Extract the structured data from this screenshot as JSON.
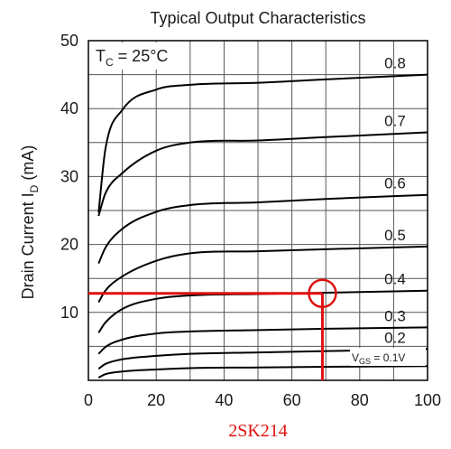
{
  "chart_data": {
    "type": "line",
    "title": "Typical Output Characteristics",
    "ylabel_main": "Drain Current",
    "ylabel_symbol": "I",
    "ylabel_sub": "D",
    "ylabel_unit": "(mA)",
    "xlim": [
      0,
      100
    ],
    "ylim": [
      0,
      50
    ],
    "x_ticks": [
      "0",
      "20",
      "40",
      "60",
      "80",
      "100"
    ],
    "y_ticks": [
      "10",
      "20",
      "30",
      "40",
      "50"
    ],
    "grid": true,
    "temperature_label": {
      "main": "T",
      "sub": "C",
      "rest": " = 25°C"
    },
    "vgs_label": {
      "main": "V",
      "sub": "GS",
      "rest": " = 0.1V"
    },
    "series": [
      {
        "name": "0.1V",
        "label": "0.1V",
        "points": [
          [
            3,
            0.4
          ],
          [
            5,
            0.9
          ],
          [
            10,
            1.3
          ],
          [
            20,
            1.6
          ],
          [
            30,
            1.8
          ],
          [
            50,
            1.9
          ],
          [
            70,
            2.0
          ],
          [
            100,
            2.1
          ]
        ]
      },
      {
        "name": "0.2",
        "label": "0.2",
        "points": [
          [
            3,
            1.7
          ],
          [
            5,
            2.4
          ],
          [
            10,
            3.1
          ],
          [
            20,
            3.6
          ],
          [
            30,
            3.9
          ],
          [
            50,
            4.1
          ],
          [
            70,
            4.3
          ],
          [
            100,
            4.6
          ]
        ]
      },
      {
        "name": "0.3",
        "label": "0.3",
        "points": [
          [
            3,
            3.9
          ],
          [
            5,
            4.9
          ],
          [
            10,
            6.0
          ],
          [
            20,
            6.9
          ],
          [
            30,
            7.2
          ],
          [
            50,
            7.4
          ],
          [
            70,
            7.6
          ],
          [
            100,
            7.8
          ]
        ]
      },
      {
        "name": "0.4",
        "label": "0.4",
        "points": [
          [
            3,
            7.0
          ],
          [
            5,
            8.5
          ],
          [
            10,
            10.5
          ],
          [
            20,
            12.0
          ],
          [
            30,
            12.5
          ],
          [
            50,
            12.7
          ],
          [
            70,
            12.9
          ],
          [
            100,
            13.2
          ]
        ]
      },
      {
        "name": "0.5",
        "label": "0.5",
        "points": [
          [
            3,
            11.5
          ],
          [
            5,
            13.2
          ],
          [
            10,
            15.3
          ],
          [
            20,
            17.6
          ],
          [
            30,
            18.7
          ],
          [
            50,
            19.0
          ],
          [
            70,
            19.3
          ],
          [
            100,
            19.7
          ]
        ]
      },
      {
        "name": "0.6",
        "label": "0.6",
        "points": [
          [
            3,
            17.2
          ],
          [
            5,
            19.5
          ],
          [
            10,
            22.3
          ],
          [
            20,
            24.8
          ],
          [
            30,
            25.8
          ],
          [
            50,
            26.2
          ],
          [
            70,
            26.7
          ],
          [
            100,
            27.3
          ]
        ]
      },
      {
        "name": "0.7",
        "label": "0.7",
        "points": [
          [
            3,
            24.2
          ],
          [
            5,
            27.5
          ],
          [
            10,
            30.5
          ],
          [
            20,
            33.8
          ],
          [
            30,
            35.0
          ],
          [
            50,
            35.3
          ],
          [
            70,
            35.8
          ],
          [
            100,
            36.5
          ]
        ]
      },
      {
        "name": "0.8",
        "label": "0.8",
        "points": [
          [
            3,
            24.7
          ],
          [
            5,
            34.0
          ],
          [
            10,
            39.8
          ],
          [
            20,
            42.8
          ],
          [
            30,
            43.5
          ],
          [
            50,
            43.8
          ],
          [
            70,
            44.3
          ],
          [
            100,
            45.0
          ]
        ]
      }
    ],
    "annotation": {
      "operating_point": {
        "x": 69,
        "y": 12.8
      },
      "color": "#e01010"
    },
    "part_number": "2SK214",
    "line_color": "#000000",
    "grid_color": "#555555",
    "accent_color": "#e01010"
  }
}
